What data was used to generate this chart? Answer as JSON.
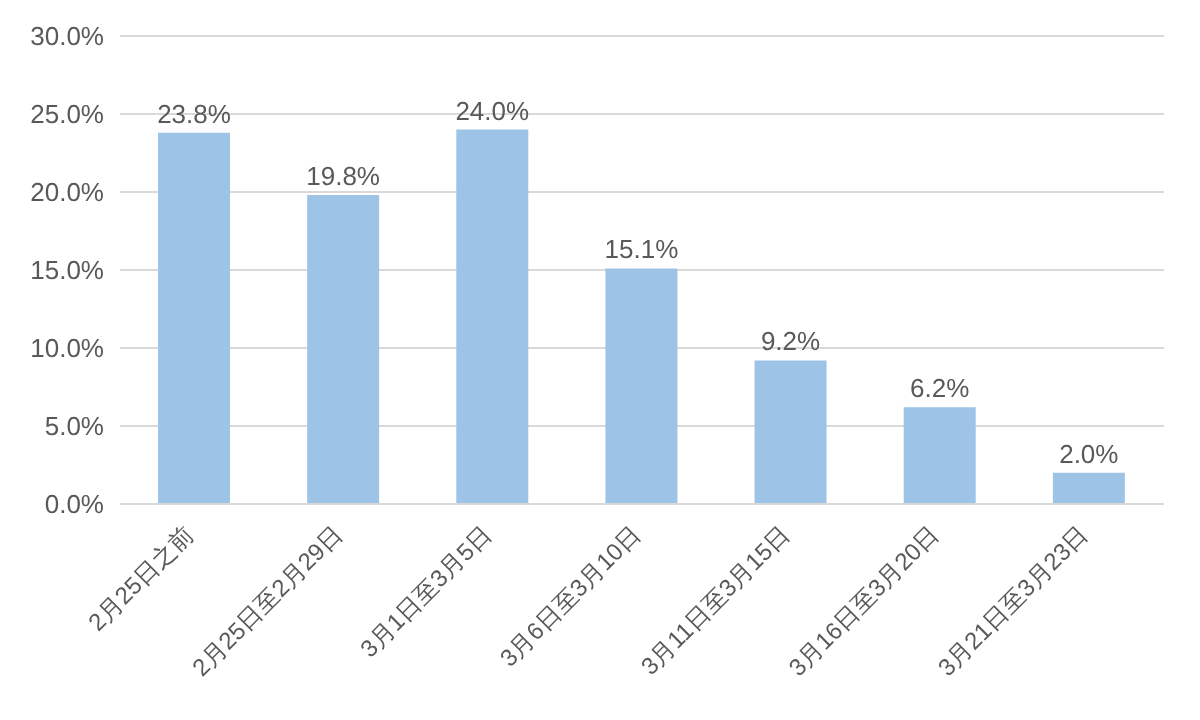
{
  "chart_data": {
    "type": "bar",
    "categories": [
      "2月25日之前",
      "2月25日至2月29日",
      "3月1日至3月5日",
      "3月6日至3月10日",
      "3月11日至3月15日",
      "3月16日至3月20日",
      "3月21日至3月23日"
    ],
    "values": [
      23.8,
      19.8,
      24.0,
      15.1,
      9.2,
      6.2,
      2.0
    ],
    "value_labels": [
      "23.8%",
      "19.8%",
      "24.0%",
      "15.1%",
      "9.2%",
      "6.2%",
      "2.0%"
    ],
    "color": "#9dc3e6",
    "ylim": [
      0,
      30
    ],
    "yticks": [
      {
        "value": 0,
        "label": "0.0%"
      },
      {
        "value": 5,
        "label": "5.0%"
      },
      {
        "value": 10,
        "label": "10.0%"
      },
      {
        "value": 15,
        "label": "15.0%"
      },
      {
        "value": 20,
        "label": "20.0%"
      },
      {
        "value": 25,
        "label": "25.0%"
      },
      {
        "value": 30,
        "label": "30.0%"
      }
    ],
    "grid": "y"
  }
}
